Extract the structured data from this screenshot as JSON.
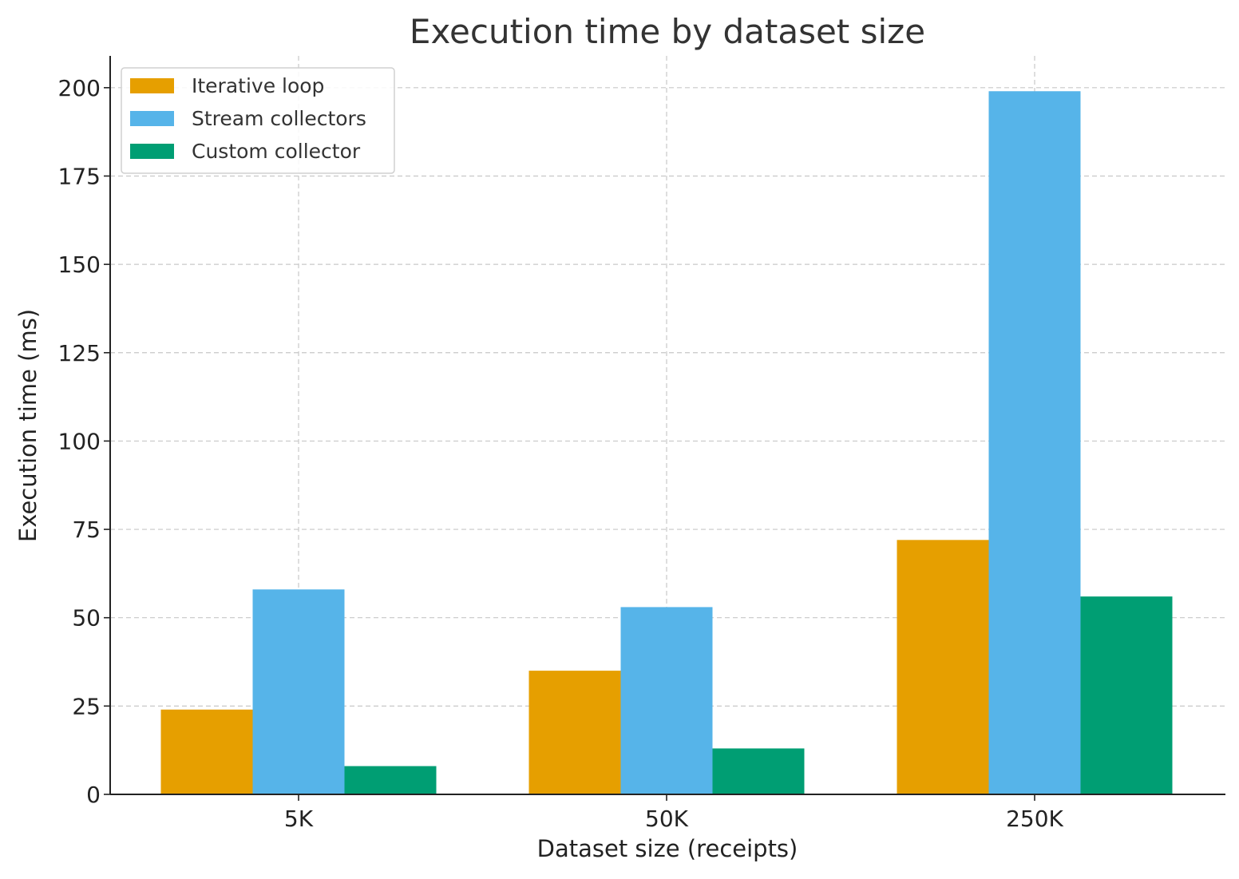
{
  "chart_data": {
    "type": "bar",
    "title": "Execution time by dataset size",
    "xlabel": "Dataset size (receipts)",
    "ylabel": "Execution time (ms)",
    "categories": [
      "5K",
      "50K",
      "250K"
    ],
    "series": [
      {
        "name": "Iterative loop",
        "color": "#E69F00",
        "values": [
          24,
          35,
          72
        ]
      },
      {
        "name": "Stream collectors",
        "color": "#56B4E9",
        "values": [
          58,
          53,
          199
        ]
      },
      {
        "name": "Custom collector",
        "color": "#009E73",
        "values": [
          8,
          13,
          56
        ]
      }
    ],
    "ylim": [
      0,
      209
    ],
    "yticks": [
      0,
      25,
      50,
      75,
      100,
      125,
      150,
      175,
      200
    ],
    "grid": true,
    "legend_position": "top-left"
  }
}
